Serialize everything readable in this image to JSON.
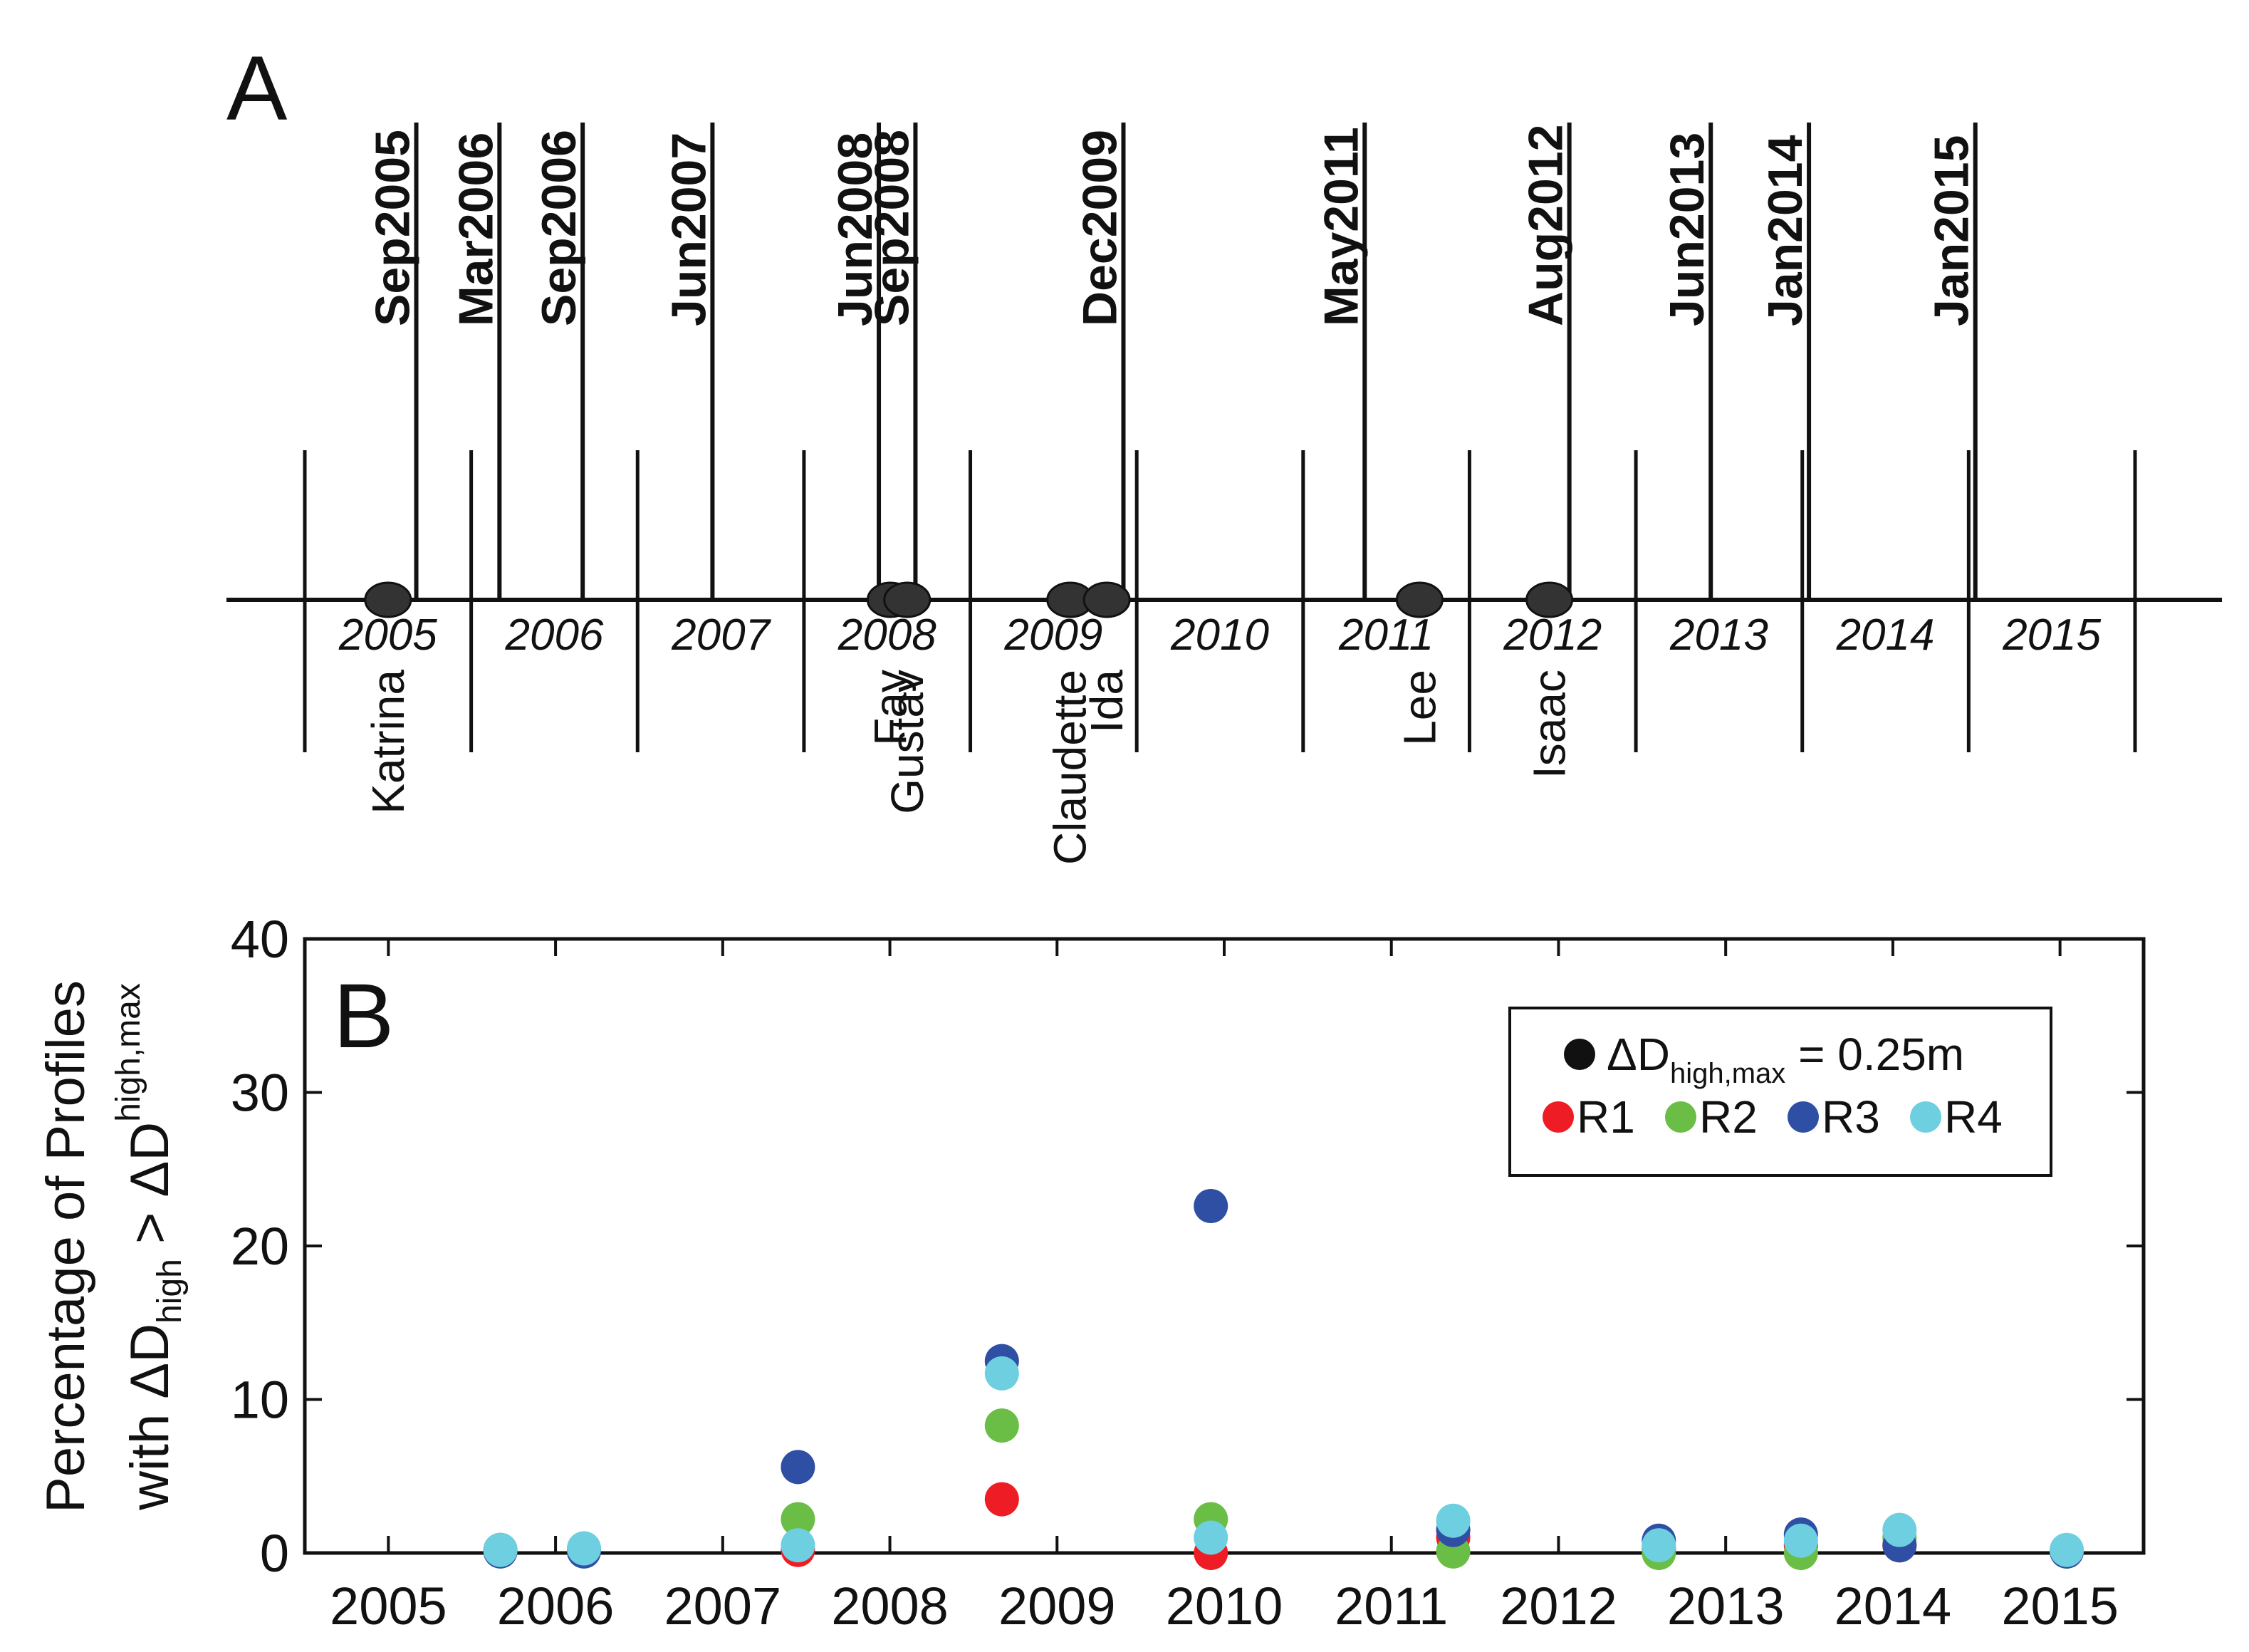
{
  "panel_a": {
    "letter": "A",
    "year_labels": [
      "2005",
      "2006",
      "2007",
      "2008",
      "2009",
      "2010",
      "2011",
      "2012",
      "2013",
      "2014",
      "2015"
    ],
    "surveys": [
      {
        "label": "Sep2005",
        "date": 2005.67
      },
      {
        "label": "Mar2006",
        "date": 2006.17
      },
      {
        "label": "Sep2006",
        "date": 2006.67
      },
      {
        "label": "Jun2007",
        "date": 2007.45
      },
      {
        "label": "Jun2008",
        "date": 2008.45
      },
      {
        "label": "Sep2008",
        "date": 2008.67
      },
      {
        "label": "Dec2009",
        "date": 2009.92
      },
      {
        "label": "May2011",
        "date": 2011.37
      },
      {
        "label": "Aug2012",
        "date": 2012.6
      },
      {
        "label": "Jun2013",
        "date": 2013.45
      },
      {
        "label": "Jan2014",
        "date": 2014.04
      },
      {
        "label": "Jan2015",
        "date": 2015.04
      }
    ],
    "storms": [
      {
        "name": "Katrina",
        "date": 2005.5
      },
      {
        "name": "Fay",
        "date": 2008.52
      },
      {
        "name": "Gustav",
        "date": 2008.62
      },
      {
        "name": "Claudette",
        "date": 2009.6
      },
      {
        "name": "Ida",
        "date": 2009.82
      },
      {
        "name": "Lee",
        "date": 2011.7
      },
      {
        "name": "Isaac",
        "date": 2012.48
      }
    ]
  },
  "chart_data": {
    "type": "scatter",
    "panel_letter": "B",
    "ylabel_line1": "Percentage of Profiles",
    "ylabel_line2_prefix": "with ΔD",
    "ylabel_line2_sub1": "high",
    "ylabel_line2_middle": " > ΔD",
    "ylabel_line2_sub2": "high,max",
    "xlabel": "",
    "xlim": [
      2005,
      2015
    ],
    "ylim": [
      0,
      40
    ],
    "x_ticks": [
      "2005",
      "2006",
      "2007",
      "2008",
      "2009",
      "2010",
      "2011",
      "2012",
      "2013",
      "2014",
      "2015"
    ],
    "y_ticks": [
      "0",
      "10",
      "20",
      "30",
      "40"
    ],
    "legend": {
      "threshold_prefix": "ΔD",
      "threshold_sub": "high,max",
      "threshold_suffix": " = 0.25m",
      "position": "top-right"
    },
    "series": [
      {
        "name": "R1",
        "color": "#ee1c24",
        "x": [
          2005.67,
          2006.17,
          2007.45,
          2008.67,
          2009.92,
          2011.37,
          2012.6,
          2013.45,
          2014.04,
          2015.04
        ],
        "y": [
          0.2,
          0.2,
          0.2,
          3.5,
          0.0,
          1.0,
          0.3,
          0.5,
          0.5,
          0.1
        ]
      },
      {
        "name": "R2",
        "color": "#6abd45",
        "x": [
          2005.67,
          2006.17,
          2007.45,
          2008.67,
          2009.92,
          2011.37,
          2012.6,
          2013.45,
          2014.04,
          2015.04
        ],
        "y": [
          0.2,
          0.2,
          2.2,
          8.3,
          2.2,
          0.1,
          0.0,
          0.0,
          1.0,
          0.1
        ]
      },
      {
        "name": "R3",
        "color": "#2e4fa3",
        "x": [
          2005.67,
          2006.17,
          2007.45,
          2008.67,
          2009.92,
          2011.37,
          2012.6,
          2013.45,
          2014.04,
          2015.04
        ],
        "y": [
          0.1,
          0.1,
          5.6,
          12.5,
          22.6,
          1.5,
          0.8,
          1.2,
          0.5,
          0.1
        ]
      },
      {
        "name": "R4",
        "color": "#6dcfe0",
        "x": [
          2005.67,
          2006.17,
          2007.45,
          2008.67,
          2009.92,
          2011.37,
          2012.6,
          2013.45,
          2014.04,
          2015.04
        ],
        "y": [
          0.2,
          0.3,
          0.5,
          11.7,
          1.0,
          2.1,
          0.5,
          0.8,
          1.5,
          0.2
        ]
      }
    ]
  },
  "colors": {
    "axis": "#111111",
    "marker_black": "#333333"
  }
}
